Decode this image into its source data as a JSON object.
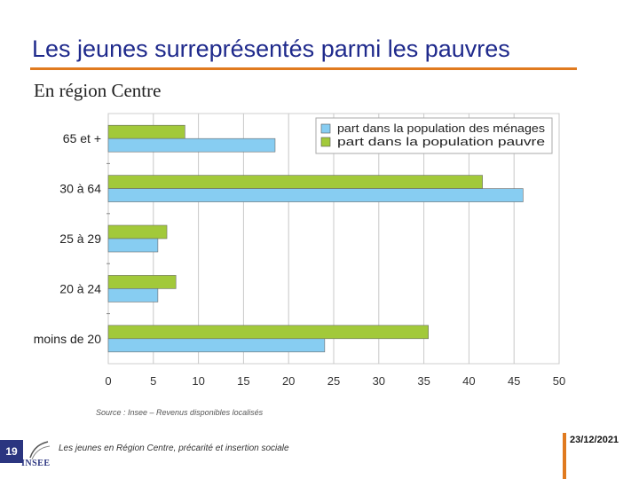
{
  "slide": {
    "title": "Les jeunes surreprésentés parmi les pauvres",
    "subtitle": "En région Centre",
    "source": "Source : Insee – Revenus disponibles localisés",
    "page_number": "19",
    "logo_label": "INSEE",
    "footer_text": "Les jeunes en Région Centre, précarité et insertion sociale",
    "date": "23/12/2021"
  },
  "colors": {
    "population_menages": "#87cdf2",
    "population_pauvre": "#a2c93a",
    "accent": "#e07a1f",
    "title": "#1f2a8c"
  },
  "chart_data": {
    "type": "bar",
    "orientation": "horizontal",
    "categories": [
      "65 et +",
      "30 à 64",
      "25 à 29",
      "20 à 24",
      "moins de 20"
    ],
    "series": [
      {
        "name": "part dans la population pauvre",
        "values": [
          8.5,
          41.5,
          6.5,
          7.5,
          35.5
        ]
      },
      {
        "name": "part dans la population des ménages",
        "values": [
          18.5,
          46,
          5.5,
          5.5,
          24
        ]
      }
    ],
    "legend_order": [
      "part dans la population des ménages",
      "part dans la population pauvre"
    ],
    "xticks": [
      "0",
      "5",
      "10",
      "15",
      "20",
      "25",
      "30",
      "35",
      "40",
      "45",
      "50"
    ],
    "xlim": [
      0,
      50
    ],
    "grid": true,
    "legend_position": "top-right"
  }
}
